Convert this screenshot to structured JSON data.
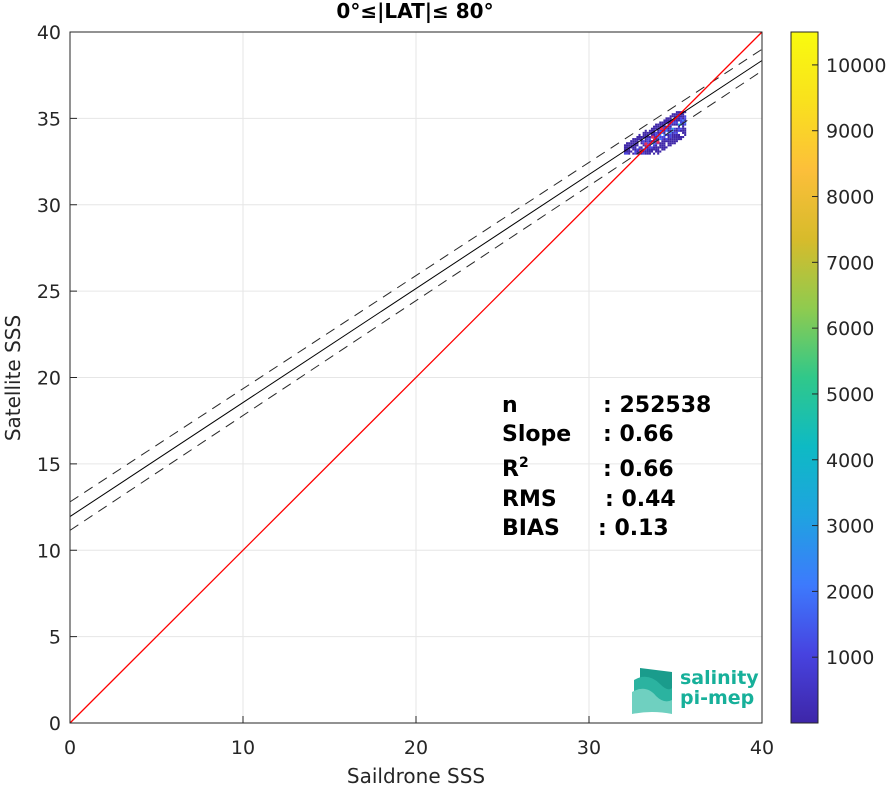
{
  "chart_data": {
    "type": "heatmap",
    "title": "0°≤|LAT|≤ 80°",
    "xlabel": "Saildrone SSS",
    "ylabel": "Satellite SSS",
    "xlim": [
      0,
      40
    ],
    "ylim": [
      0,
      40
    ],
    "x_ticks": [
      "0",
      "10",
      "20",
      "30",
      "40"
    ],
    "y_ticks": [
      "0",
      "5",
      "10",
      "15",
      "20",
      "25",
      "30",
      "35",
      "40"
    ],
    "grid": true,
    "reference_line": {
      "type": "1:1",
      "color": "#ff0000"
    },
    "fit_line": {
      "intercept": 11.95,
      "slope": 0.66,
      "color": "#000000"
    },
    "confidence_band": {
      "upper_intercept": 12.8,
      "upper_slope": 0.655,
      "lower_intercept": 11.15,
      "lower_slope": 0.665,
      "style": "dashed"
    },
    "density_cluster": {
      "x_range": [
        29.5,
        35.5
      ],
      "y_range": [
        32.9,
        35.4
      ]
    },
    "colorbar": {
      "min": 0,
      "max": 10500,
      "ticks": [
        "1000",
        "2000",
        "3000",
        "4000",
        "5000",
        "6000",
        "7000",
        "8000",
        "9000",
        "10000"
      ],
      "colormap": [
        "#3e26a8",
        "#4743e0",
        "#3d7afd",
        "#1fa3e0",
        "#0ebac4",
        "#30c88a",
        "#8fcb4f",
        "#d7bb2b",
        "#fcbf3a",
        "#f9e11d",
        "#f9fb0e"
      ]
    },
    "stats": [
      {
        "label": "n",
        "value": ": 252538"
      },
      {
        "label": "Slope",
        "value": ": 0.66"
      },
      {
        "label": "R",
        "sup": "2",
        "value": ": 0.66"
      },
      {
        "label": "RMS",
        "value": ": 0.44"
      },
      {
        "label": "BIAS",
        "value": ": 0.13"
      }
    ]
  },
  "logo": {
    "line1": "salinity",
    "line2": "pi-mep",
    "text_color": "#17b09a",
    "icon_colors": [
      "#1a9c8c",
      "#2bb3a0",
      "#6fd0c0",
      "#bfe9e0"
    ]
  }
}
